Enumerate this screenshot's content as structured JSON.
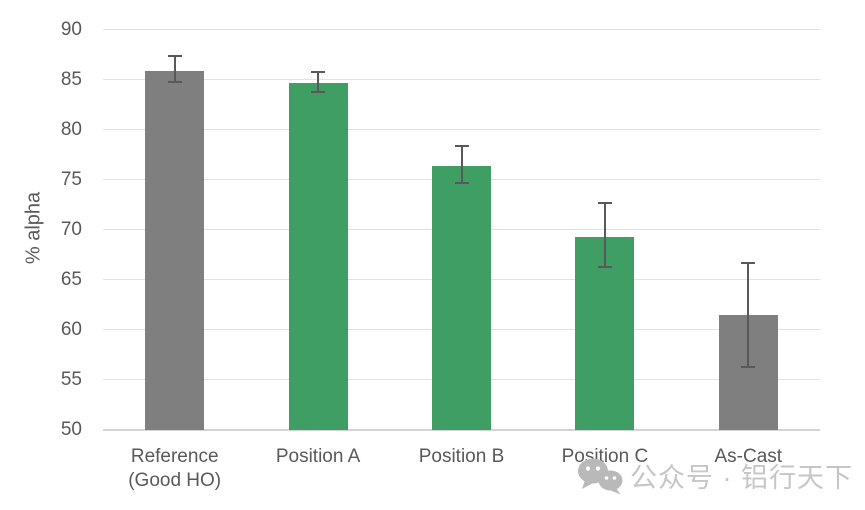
{
  "chart_data": {
    "type": "bar",
    "title": "",
    "xlabel": "",
    "ylabel": "% alpha",
    "categories": [
      "Reference\n(Good HO)",
      "Position A",
      "Position B",
      "Position C",
      "As-Cast"
    ],
    "values": [
      85.9,
      84.7,
      76.4,
      69.3,
      61.5
    ],
    "error_up": [
      1.5,
      1.1,
      2.0,
      3.4,
      5.2
    ],
    "error_down": [
      1.1,
      0.9,
      1.7,
      3.0,
      5.2
    ],
    "bar_colors": [
      "#7f7f7f",
      "#3f9e63",
      "#3f9e63",
      "#3f9e63",
      "#7f7f7f"
    ],
    "gray_color": "#7f7f7f",
    "green_color": "#3f9e63",
    "error_bar_color": "#595959",
    "ylim": [
      50,
      90
    ],
    "ytick_step": 5,
    "ytick_labels": [
      "50",
      "55",
      "60",
      "65",
      "70",
      "75",
      "80",
      "85",
      "90"
    ],
    "grid": true,
    "legend": "none"
  },
  "watermark": {
    "icon": "wechat-icon",
    "text": "公众号 · 铝行天下"
  }
}
